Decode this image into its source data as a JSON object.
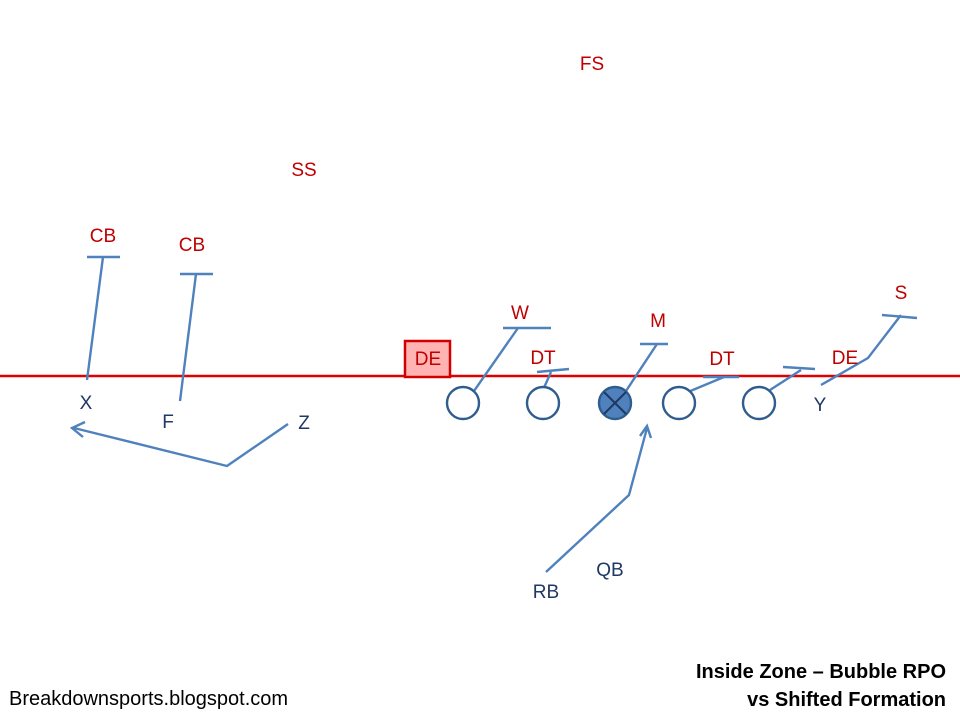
{
  "title": {
    "line1": "Inside Zone – Bubble RPO",
    "line2": "vs Shifted Formation"
  },
  "credit": "Breakdownsports.blogspot.com",
  "colors": {
    "defense": "#c00000",
    "offense": "#1f3864",
    "routes": "#4f81bd",
    "line_of_scrimmage": "#e00000",
    "highlight_fill": "#ffb3b3"
  },
  "defense": {
    "fs": "FS",
    "ss": "SS",
    "cb_left": "CB",
    "cb_inner": "CB",
    "de_highlight": "DE",
    "w": "W",
    "dt_left": "DT",
    "m": "M",
    "dt_right": "DT",
    "de_right": "DE",
    "s": "S"
  },
  "offense": {
    "x": "X",
    "f": "F",
    "z": "Z",
    "y": "Y",
    "rb": "RB",
    "qb": "QB"
  }
}
